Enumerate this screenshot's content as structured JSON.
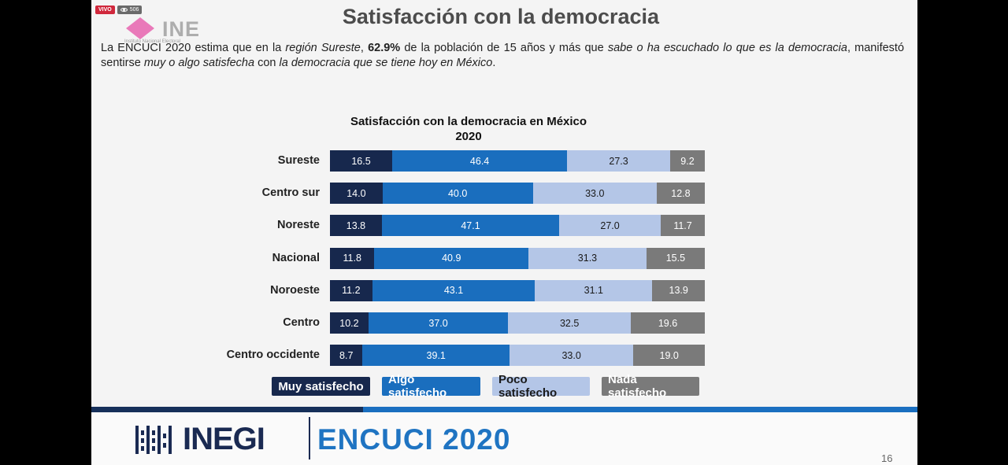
{
  "stream": {
    "live_label": "VIVO",
    "viewers": "506"
  },
  "logo": {
    "text": "INE",
    "subtitle": "Instituto Nacional Electoral"
  },
  "slide_title": "Satisfacción con la democracia",
  "intro": {
    "p1": "La ENCUCI 2020 estima que en la ",
    "p2": "región Sureste",
    "p3": ", ",
    "p4": "62.9%",
    "p5": " de la población de 15 años y más que ",
    "p6": "sabe o ha escuchado lo que es la democracia",
    "p7": ", manifestó sentirse ",
    "p8": "muy o algo satisfecha",
    "p9": " con ",
    "p10": "la democracia que se tiene hoy en México",
    "p11": "."
  },
  "chart_data": {
    "type": "bar",
    "orientation": "horizontal",
    "stacked": true,
    "title": "Satisfacción con la democracia en México",
    "subtitle": "2020",
    "categories": [
      "Sureste",
      "Centro sur",
      "Noreste",
      "Nacional",
      "Noroeste",
      "Centro",
      "Centro occidente"
    ],
    "series": [
      {
        "name": "Muy satisfecho",
        "color": "#17284d",
        "text_color": "#ffffff",
        "values": [
          16.5,
          14.0,
          13.8,
          11.8,
          11.2,
          10.2,
          8.7
        ],
        "labels": [
          "16.5",
          "14.0",
          "13.8",
          "11.8",
          "11.2",
          "10.2",
          "8.7"
        ]
      },
      {
        "name": "Algo satisfecho",
        "color": "#1a6ebe",
        "text_color": "#ffffff",
        "values": [
          46.4,
          40.0,
          47.1,
          40.9,
          43.1,
          37.0,
          39.1
        ],
        "labels": [
          "46.4",
          "40.0",
          "47.1",
          "40.9",
          "43.1",
          "37.0",
          "39.1"
        ]
      },
      {
        "name": "Poco satisfecho",
        "color": "#b4c6e7",
        "text_color": "#1a1a1a",
        "values": [
          27.3,
          33.0,
          27.0,
          31.3,
          31.1,
          32.5,
          33.0
        ],
        "labels": [
          "27.3",
          "33.0",
          "27.0",
          "31.3",
          "31.1",
          "32.5",
          "33.0"
        ]
      },
      {
        "name": "Nada satisfecho",
        "color": "#7a7a7a",
        "text_color": "#ffffff",
        "values": [
          9.2,
          12.8,
          11.7,
          15.5,
          13.9,
          19.6,
          19.0
        ],
        "labels": [
          "9.2",
          "12.8",
          "11.7",
          "15.5",
          "13.9",
          "19.6",
          "19.0"
        ]
      }
    ],
    "legend_position": "bottom"
  },
  "footer": {
    "org": "INEGI",
    "survey": "ENCUCI 2020",
    "page": "16"
  }
}
